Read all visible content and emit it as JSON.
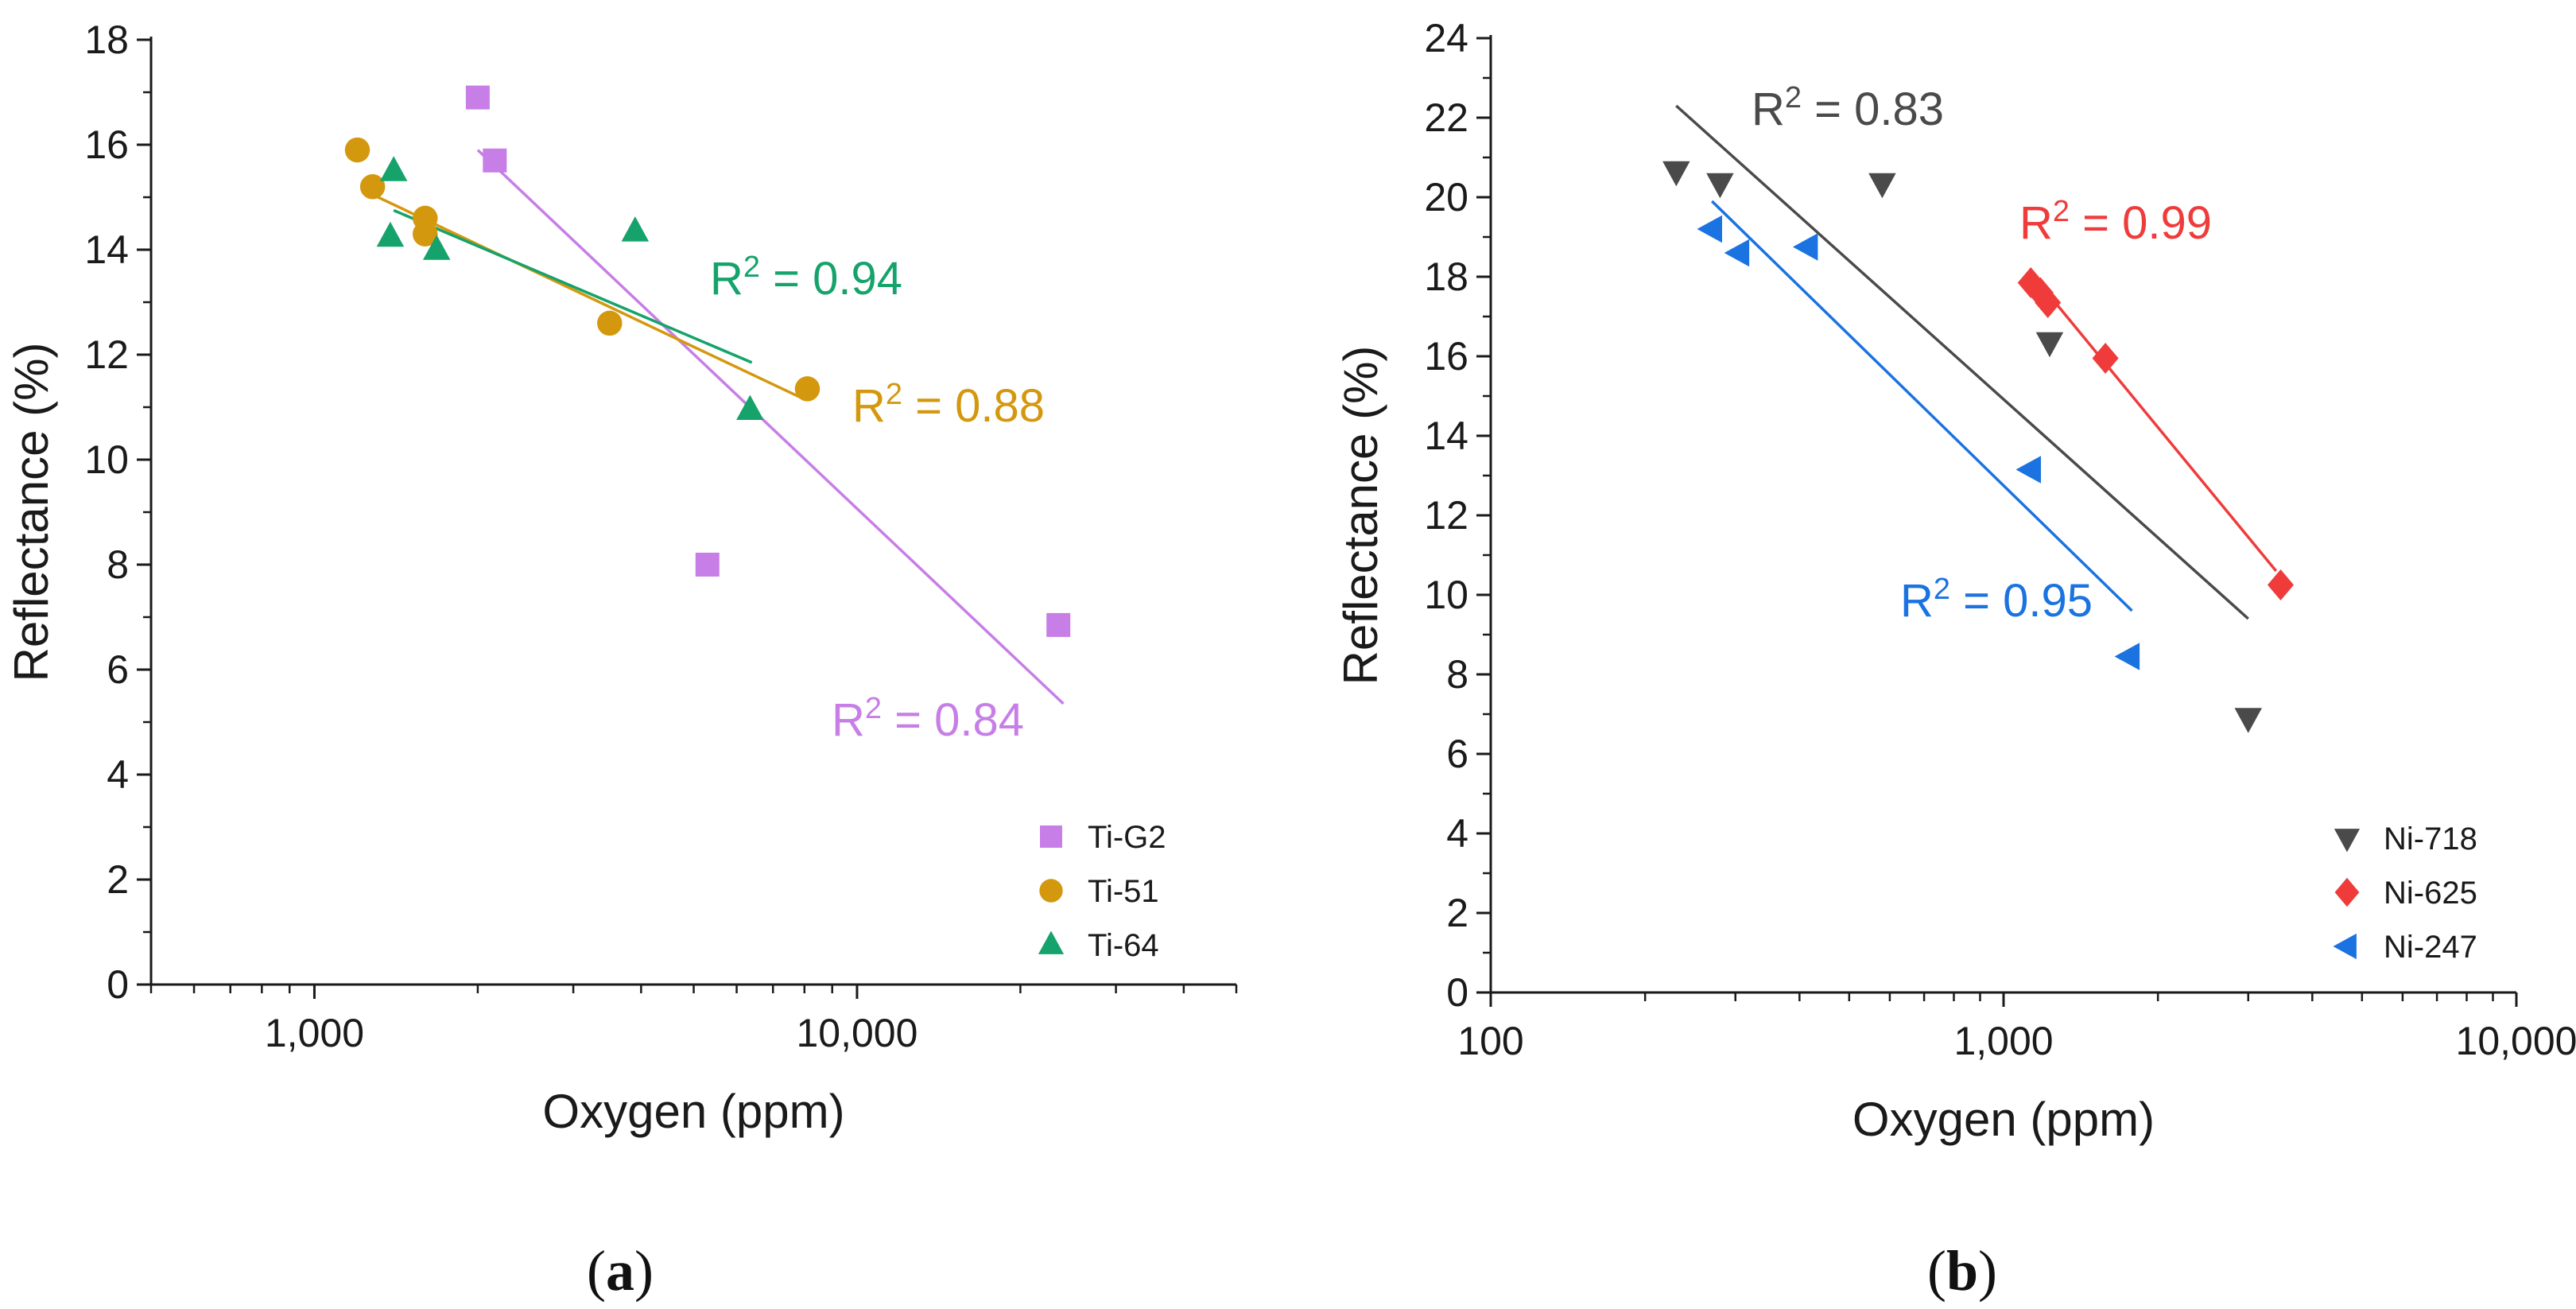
{
  "chart_data": [
    {
      "type": "scatter",
      "panel_label": "a",
      "xscale": "log",
      "xlim": [
        500,
        50000
      ],
      "ylim": [
        0,
        18
      ],
      "xlabel": "Oxygen (ppm)",
      "ylabel": "Reflectance (%)",
      "xticks": [
        {
          "value": 1000,
          "label": "1,000"
        },
        {
          "value": 10000,
          "label": "10,000"
        }
      ],
      "yticks": [
        0,
        2,
        4,
        6,
        8,
        10,
        12,
        14,
        16,
        18
      ],
      "legend_position": "bottom-right",
      "series": [
        {
          "name": "Ti-G2",
          "marker": "square",
          "color": "#c77ee6",
          "points": [
            [
              2000,
              16.9
            ],
            [
              2150,
              15.7
            ],
            [
              5300,
              8.0
            ],
            [
              23500,
              6.85
            ]
          ],
          "fit": {
            "x": [
              2000,
              24000
            ],
            "y": [
              15.9,
              5.35
            ]
          },
          "r2": "0.84"
        },
        {
          "name": "Ti-51",
          "marker": "circle",
          "color": "#d4980f",
          "points": [
            [
              1200,
              15.9
            ],
            [
              1280,
              15.2
            ],
            [
              1600,
              14.6
            ],
            [
              1600,
              14.3
            ],
            [
              3500,
              12.6
            ],
            [
              8100,
              11.35
            ]
          ],
          "fit": {
            "x": [
              1250,
              8000
            ],
            "y": [
              15.1,
              11.15
            ]
          },
          "r2": "0.88"
        },
        {
          "name": "Ti-64",
          "marker": "triangle-up",
          "color": "#15a36b",
          "points": [
            [
              1400,
              15.5
            ],
            [
              1380,
              14.25
            ],
            [
              1680,
              14.0
            ],
            [
              3900,
              14.35
            ],
            [
              6350,
              10.95
            ]
          ],
          "fit": {
            "x": [
              1400,
              6400
            ],
            "y": [
              14.75,
              11.85
            ]
          },
          "r2": "0.94"
        }
      ],
      "annotations": [
        {
          "series": "Ti-64",
          "prefix": "R",
          "sup": "2",
          "rest": " = 0.94"
        },
        {
          "series": "Ti-51",
          "prefix": "R",
          "sup": "2",
          "rest": " = 0.88"
        },
        {
          "series": "Ti-G2",
          "prefix": "R",
          "sup": "2",
          "rest": " = 0.84"
        }
      ]
    },
    {
      "type": "scatter",
      "panel_label": "b",
      "xscale": "log",
      "xlim": [
        100,
        10000
      ],
      "ylim": [
        0,
        24
      ],
      "xlabel": "Oxygen (ppm)",
      "ylabel": "Reflectance (%)",
      "xticks": [
        {
          "value": 100,
          "label": "100"
        },
        {
          "value": 1000,
          "label": "1,000"
        },
        {
          "value": 10000,
          "label": "10,000"
        }
      ],
      "yticks": [
        0,
        2,
        4,
        6,
        8,
        10,
        12,
        14,
        16,
        18,
        20,
        22,
        24
      ],
      "legend_position": "bottom-right",
      "series": [
        {
          "name": "Ni-718",
          "marker": "triangle-down",
          "color": "#4a4a4a",
          "points": [
            [
              230,
              20.65
            ],
            [
              280,
              20.35
            ],
            [
              580,
              20.35
            ],
            [
              1230,
              16.35
            ],
            [
              3000,
              6.9
            ]
          ],
          "fit": {
            "x": [
              230,
              3000
            ],
            "y": [
              22.3,
              9.4
            ]
          },
          "r2": "0.83"
        },
        {
          "name": "Ni-625",
          "marker": "diamond",
          "color": "#f03b3b",
          "points": [
            [
              1130,
              17.85
            ],
            [
              1180,
              17.6
            ],
            [
              1220,
              17.35
            ],
            [
              1580,
              15.95
            ],
            [
              3470,
              10.25
            ]
          ],
          "fit": {
            "x": [
              1130,
              3400
            ],
            "y": [
              18.1,
              10.6
            ]
          },
          "r2": "0.99"
        },
        {
          "name": "Ni-247",
          "marker": "triangle-left",
          "color": "#1a73e0",
          "points": [
            [
              270,
              19.2
            ],
            [
              305,
              18.6
            ],
            [
              415,
              18.75
            ],
            [
              1130,
              13.15
            ],
            [
              1760,
              8.45
            ]
          ],
          "fit": {
            "x": [
              270,
              1780
            ],
            "y": [
              19.9,
              9.6
            ]
          },
          "r2": "0.95"
        }
      ],
      "annotations": [
        {
          "series": "Ni-718",
          "prefix": "R",
          "sup": "2",
          "rest": " = 0.83"
        },
        {
          "series": "Ni-625",
          "prefix": "R",
          "sup": "2",
          "rest": " = 0.99"
        },
        {
          "series": "Ni-247",
          "prefix": "R",
          "sup": "2",
          "rest": " = 0.95"
        }
      ]
    }
  ]
}
